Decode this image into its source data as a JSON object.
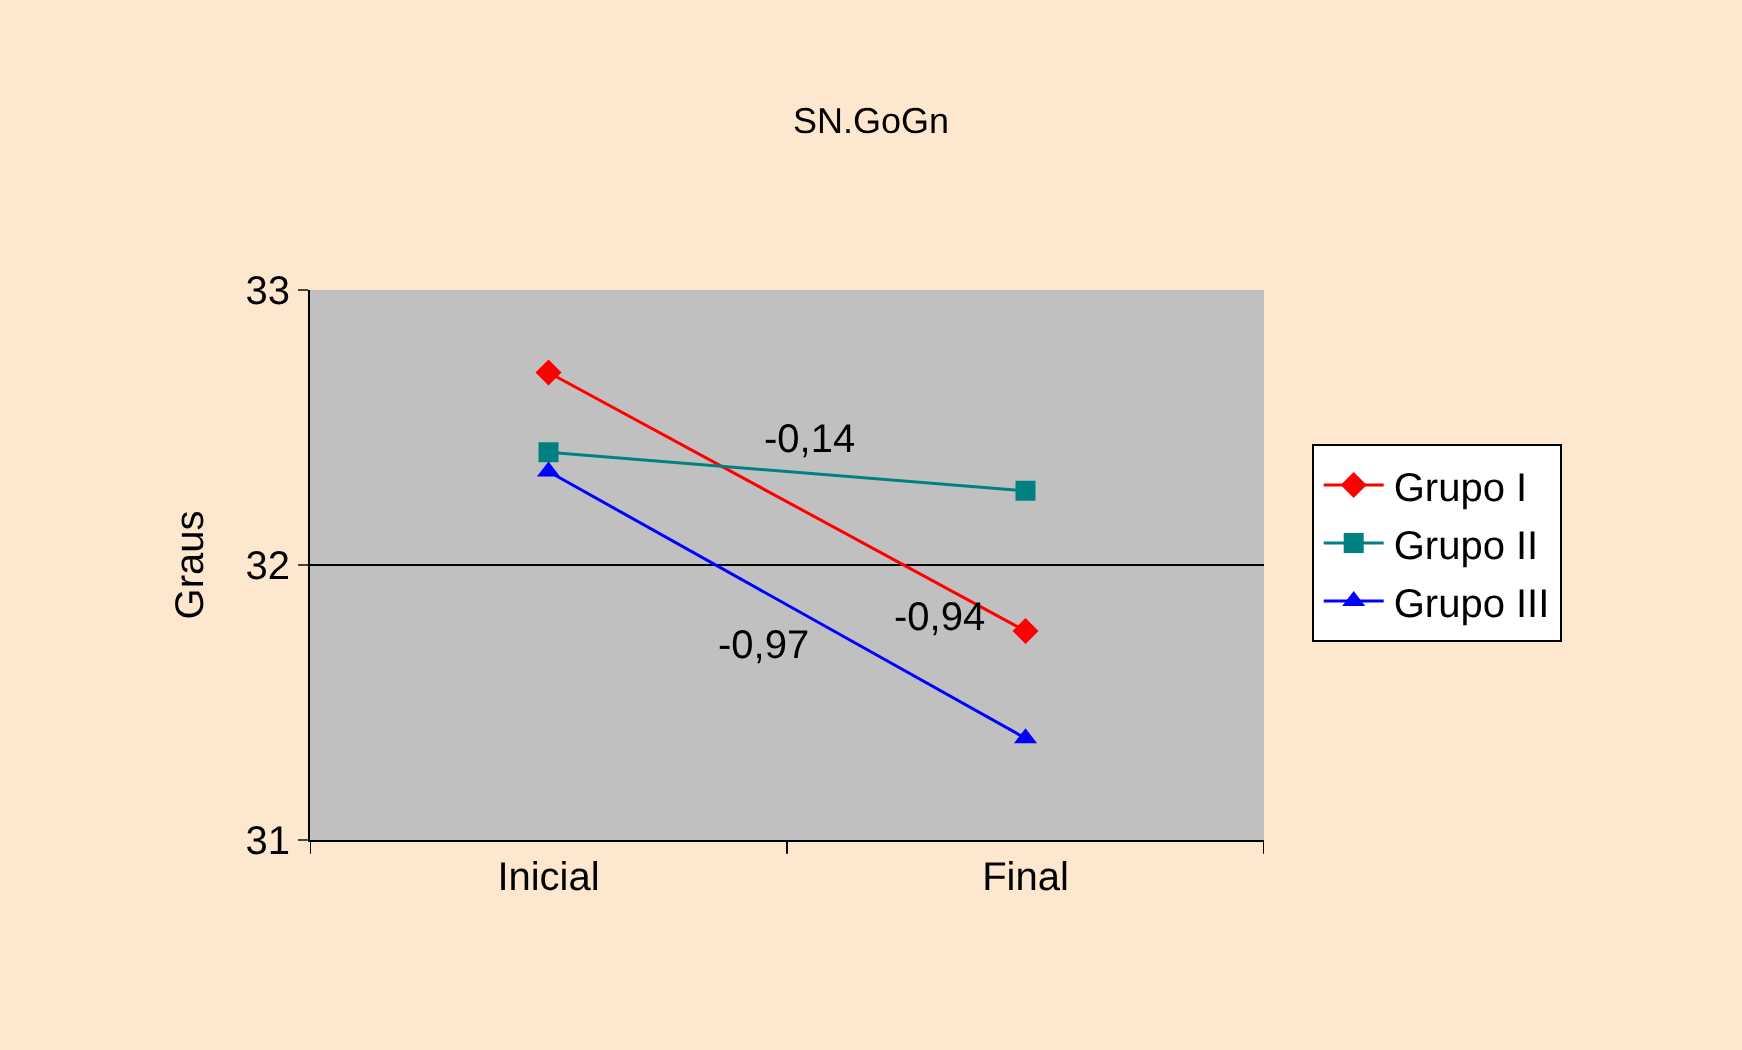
{
  "chart_data": {
    "type": "line",
    "title": "SN.GoGn",
    "ylabel": "Graus",
    "categories": [
      "Inicial",
      "Final"
    ],
    "series": [
      {
        "name": "Grupo I",
        "color": "#ff0000",
        "values": [
          32.7,
          31.76
        ],
        "marker": "diamond"
      },
      {
        "name": "Grupo II",
        "color": "#008080",
        "values": [
          32.41,
          32.27
        ],
        "marker": "square"
      },
      {
        "name": "Grupo III",
        "color": "#0000ff",
        "values": [
          32.34,
          31.37
        ],
        "marker": "triangle"
      }
    ],
    "annotations": [
      "-0,94",
      "-0,14",
      "-0,97"
    ],
    "ylim": [
      31,
      33
    ],
    "yticks": [
      31,
      32,
      33
    ],
    "grid": "y",
    "legend": "right"
  }
}
